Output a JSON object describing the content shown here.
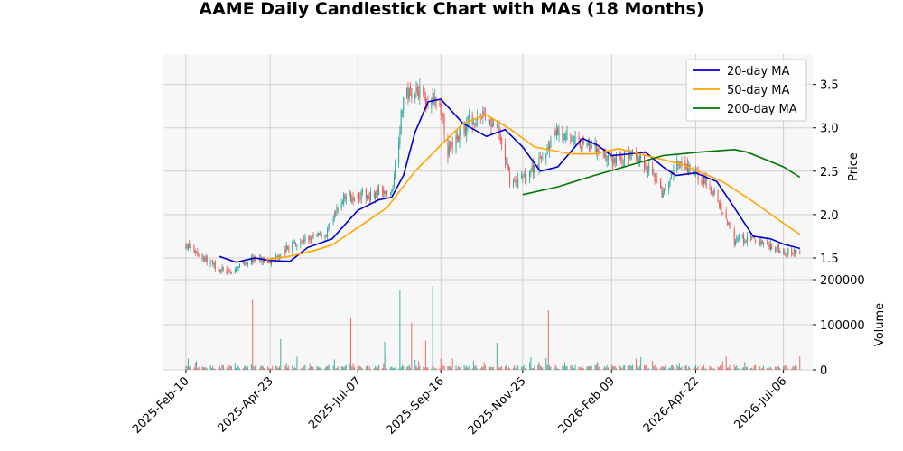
{
  "chart_data": {
    "type": "candlestick",
    "title": "AAME Daily Candlestick Chart with MAs (18 Months)",
    "price_axis": {
      "label": "Price",
      "ylim": [
        1.25,
        3.85
      ],
      "ticks": [
        1.5,
        2.0,
        2.5,
        3.0,
        3.5
      ],
      "tick_labels": [
        "1.5",
        "2.0",
        "2.5",
        "3.0",
        "3.5"
      ],
      "side": "right"
    },
    "volume_axis": {
      "label": "Volume",
      "ylim": [
        0,
        200000
      ],
      "ticks": [
        0,
        100000,
        200000
      ],
      "tick_labels": [
        "0",
        "100000",
        "200000"
      ],
      "side": "right"
    },
    "x_axis": {
      "xlim": [
        "2025-01-21",
        "2026-07-31"
      ],
      "ticks": [
        "2025-02-10",
        "2025-04-23",
        "2025-07-07",
        "2025-09-16",
        "2025-11-25",
        "2026-02-09",
        "2026-04-22",
        "2026-07-06"
      ],
      "tick_labels": [
        "2025-Feb-10",
        "2025-Apr-23",
        "2025-Jul-07",
        "2025-Sep-16",
        "2025-Nov-25",
        "2026-Feb-09",
        "2026-Apr-22",
        "2026-Jul-06"
      ]
    },
    "grid": true,
    "up_color": "#26a69a",
    "down_color": "#ef5350",
    "close_anchors": [
      [
        "2025-02-10",
        1.65
      ],
      [
        "2025-03-05",
        1.42
      ],
      [
        "2025-03-20",
        1.32
      ],
      [
        "2025-04-05",
        1.48
      ],
      [
        "2025-04-23",
        1.47
      ],
      [
        "2025-05-15",
        1.68
      ],
      [
        "2025-06-10",
        1.78
      ],
      [
        "2025-06-25",
        2.2
      ],
      [
        "2025-07-07",
        2.22
      ],
      [
        "2025-08-05",
        2.25
      ],
      [
        "2025-08-15",
        3.35
      ],
      [
        "2025-08-25",
        3.45
      ],
      [
        "2025-09-16",
        3.22
      ],
      [
        "2025-09-22",
        2.72
      ],
      [
        "2025-10-10",
        3.08
      ],
      [
        "2025-10-25",
        3.15
      ],
      [
        "2025-11-05",
        2.92
      ],
      [
        "2025-11-15",
        2.35
      ],
      [
        "2025-11-25",
        2.42
      ],
      [
        "2025-12-10",
        2.62
      ],
      [
        "2025-12-25",
        2.95
      ],
      [
        "2026-01-10",
        2.85
      ],
      [
        "2026-01-20",
        2.82
      ],
      [
        "2026-02-09",
        2.62
      ],
      [
        "2026-03-01",
        2.7
      ],
      [
        "2026-03-15",
        2.52
      ],
      [
        "2026-03-25",
        2.22
      ],
      [
        "2026-04-05",
        2.58
      ],
      [
        "2026-04-22",
        2.48
      ],
      [
        "2026-05-10",
        2.22
      ],
      [
        "2026-05-25",
        1.7
      ],
      [
        "2026-06-10",
        1.72
      ],
      [
        "2026-07-06",
        1.58
      ],
      [
        "2026-07-20",
        1.56
      ]
    ],
    "series": [
      {
        "name": "20-day MA",
        "color": "#0000cc",
        "points": [
          [
            "2025-03-10",
            1.52
          ],
          [
            "2025-03-25",
            1.45
          ],
          [
            "2025-04-10",
            1.5
          ],
          [
            "2025-04-23",
            1.47
          ],
          [
            "2025-05-10",
            1.46
          ],
          [
            "2025-05-25",
            1.62
          ],
          [
            "2025-06-15",
            1.72
          ],
          [
            "2025-07-07",
            2.05
          ],
          [
            "2025-07-25",
            2.17
          ],
          [
            "2025-08-05",
            2.2
          ],
          [
            "2025-08-15",
            2.45
          ],
          [
            "2025-08-25",
            2.95
          ],
          [
            "2025-09-05",
            3.3
          ],
          [
            "2025-09-16",
            3.33
          ],
          [
            "2025-10-05",
            3.05
          ],
          [
            "2025-10-25",
            2.9
          ],
          [
            "2025-11-10",
            2.98
          ],
          [
            "2025-11-25",
            2.78
          ],
          [
            "2025-12-10",
            2.5
          ],
          [
            "2025-12-25",
            2.55
          ],
          [
            "2026-01-15",
            2.88
          ],
          [
            "2026-01-28",
            2.8
          ],
          [
            "2026-02-09",
            2.68
          ],
          [
            "2026-02-25",
            2.7
          ],
          [
            "2026-03-10",
            2.72
          ],
          [
            "2026-03-25",
            2.55
          ],
          [
            "2026-04-05",
            2.45
          ],
          [
            "2026-04-22",
            2.48
          ],
          [
            "2026-05-10",
            2.38
          ],
          [
            "2026-05-25",
            2.08
          ],
          [
            "2026-06-10",
            1.75
          ],
          [
            "2026-06-25",
            1.72
          ],
          [
            "2026-07-06",
            1.66
          ],
          [
            "2026-07-20",
            1.61
          ]
        ]
      },
      {
        "name": "50-day MA",
        "color": "#ffa500",
        "points": [
          [
            "2025-04-20",
            1.48
          ],
          [
            "2025-05-10",
            1.52
          ],
          [
            "2025-06-01",
            1.59
          ],
          [
            "2025-06-15",
            1.65
          ],
          [
            "2025-07-07",
            1.85
          ],
          [
            "2025-08-01",
            2.08
          ],
          [
            "2025-08-25",
            2.5
          ],
          [
            "2025-09-16",
            2.8
          ],
          [
            "2025-10-05",
            3.05
          ],
          [
            "2025-10-25",
            3.15
          ],
          [
            "2025-11-15",
            2.98
          ],
          [
            "2025-12-05",
            2.78
          ],
          [
            "2026-01-05",
            2.7
          ],
          [
            "2026-01-25",
            2.7
          ],
          [
            "2026-02-15",
            2.76
          ],
          [
            "2026-03-05",
            2.7
          ],
          [
            "2026-04-10",
            2.58
          ],
          [
            "2026-05-15",
            2.38
          ],
          [
            "2026-06-10",
            2.15
          ],
          [
            "2026-07-06",
            1.9
          ],
          [
            "2026-07-20",
            1.77
          ]
        ]
      },
      {
        "name": "200-day MA",
        "color": "#007700",
        "points": [
          [
            "2025-11-25",
            2.23
          ],
          [
            "2025-12-25",
            2.32
          ],
          [
            "2026-01-25",
            2.45
          ],
          [
            "2026-02-25",
            2.57
          ],
          [
            "2026-03-25",
            2.68
          ],
          [
            "2026-04-25",
            2.72
          ],
          [
            "2026-05-25",
            2.75
          ],
          [
            "2026-06-05",
            2.72
          ],
          [
            "2026-07-06",
            2.55
          ],
          [
            "2026-07-20",
            2.43
          ]
        ]
      }
    ],
    "volume_spikes": [
      [
        "2025-04-08",
        155000
      ],
      [
        "2025-05-02",
        68000
      ],
      [
        "2025-07-01",
        115000
      ],
      [
        "2025-07-30",
        62000
      ],
      [
        "2025-08-12",
        178000
      ],
      [
        "2025-08-16",
        75000
      ],
      [
        "2025-08-22",
        105000
      ],
      [
        "2025-09-03",
        65000
      ],
      [
        "2025-09-09",
        185000
      ],
      [
        "2025-11-03",
        60000
      ],
      [
        "2025-11-22",
        62000
      ],
      [
        "2025-12-17",
        132000
      ],
      [
        "2025-12-20",
        105000
      ],
      [
        "2026-01-10",
        60000
      ],
      [
        "2026-07-20",
        30000
      ]
    ],
    "legend": {
      "placement": "top-right",
      "entries": [
        "20-day MA",
        "50-day MA",
        "200-day MA"
      ]
    }
  }
}
